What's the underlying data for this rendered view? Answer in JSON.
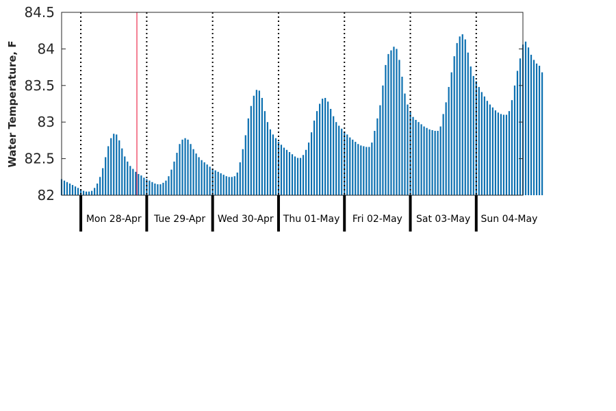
{
  "chart_data": {
    "type": "bar",
    "ylabel": "Water Temperature, F",
    "ylim": [
      82,
      84.5
    ],
    "yticks": [
      "82",
      "82.5",
      "83",
      "83.5",
      "84",
      "84.5"
    ],
    "x_range_hours": [
      -7,
      161
    ],
    "day_labels": [
      "Mon 28-Apr",
      "Tue 29-Apr",
      "Wed 30-Apr",
      "Thu 01-May",
      "Fri 02-May",
      "Sat 03-May",
      "Sun 04-May"
    ],
    "values": [
      82.22,
      82.2,
      82.18,
      82.16,
      82.14,
      82.12,
      82.1,
      82.08,
      82.06,
      82.05,
      82.05,
      82.06,
      82.1,
      82.16,
      82.25,
      82.37,
      82.52,
      82.67,
      82.78,
      82.84,
      82.83,
      82.75,
      82.64,
      82.53,
      82.46,
      82.4,
      82.36,
      82.32,
      82.29,
      82.27,
      82.24,
      82.22,
      82.2,
      82.18,
      82.16,
      82.15,
      82.15,
      82.17,
      82.2,
      82.26,
      82.35,
      82.46,
      82.58,
      82.7,
      82.76,
      82.78,
      82.76,
      82.7,
      82.63,
      82.57,
      82.52,
      82.48,
      82.45,
      82.42,
      82.39,
      82.36,
      82.34,
      82.32,
      82.3,
      82.28,
      82.26,
      82.25,
      82.25,
      82.26,
      82.31,
      82.45,
      82.63,
      82.82,
      83.05,
      83.22,
      83.36,
      83.44,
      83.43,
      83.33,
      83.15,
      83.0,
      82.9,
      82.83,
      82.78,
      82.73,
      82.69,
      82.65,
      82.62,
      82.59,
      82.56,
      82.53,
      82.51,
      82.51,
      82.55,
      82.62,
      82.72,
      82.86,
      83.02,
      83.15,
      83.25,
      83.32,
      83.33,
      83.28,
      83.18,
      83.08,
      83.0,
      82.95,
      82.91,
      82.87,
      82.83,
      82.79,
      82.76,
      82.73,
      82.7,
      82.68,
      82.67,
      82.66,
      82.66,
      82.72,
      82.88,
      83.05,
      83.23,
      83.5,
      83.78,
      83.93,
      83.98,
      84.03,
      84.0,
      83.85,
      83.62,
      83.39,
      83.24,
      83.14,
      83.07,
      83.03,
      83.0,
      82.97,
      82.94,
      82.92,
      82.9,
      82.89,
      82.88,
      82.88,
      82.94,
      83.11,
      83.27,
      83.48,
      83.68,
      83.9,
      84.08,
      84.17,
      84.2,
      84.13,
      83.95,
      83.76,
      83.63,
      83.56,
      83.48,
      83.41,
      83.35,
      83.29,
      83.24,
      83.2,
      83.16,
      83.13,
      83.11,
      83.1,
      83.1,
      83.15,
      83.3,
      83.5,
      83.7,
      83.87,
      84.06,
      84.1,
      84.02,
      83.92,
      83.85,
      83.8,
      83.77,
      83.68
    ]
  }
}
